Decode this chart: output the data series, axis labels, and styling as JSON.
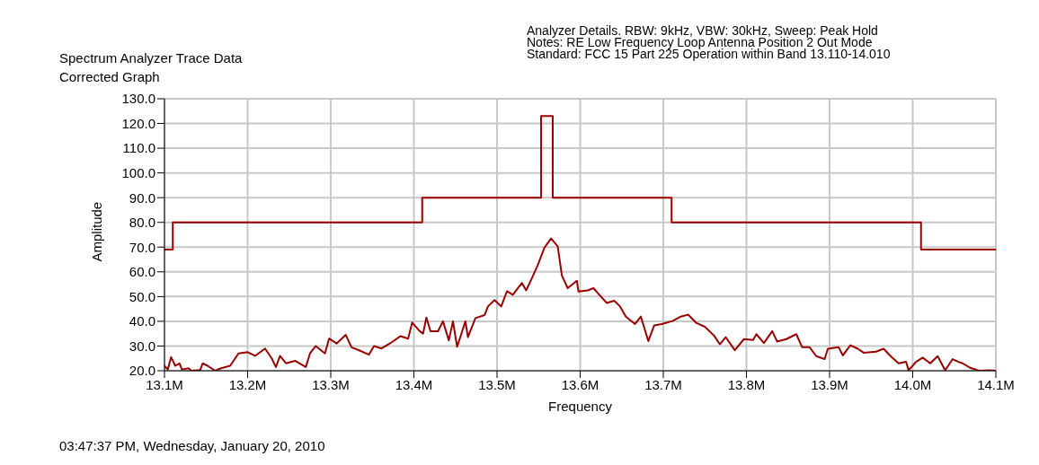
{
  "chart_data": {
    "type": "line",
    "title": "Spectrum Analyzer Trace Data",
    "subtitle": "Corrected Graph",
    "xlabel": "Frequency",
    "ylabel": "Amplitude",
    "annotations": [
      "Analyzer Details.  RBW: 9kHz, VBW: 30kHz, Sweep: Peak Hold",
      "Notes:  RE Low Frequency Loop Antenna Position 2  Out Mode",
      "Standard: FCC 15 Part 225 Operation within Band 13.110-14.010",
      "03:47:37 PM, Wednesday, January 20, 2010"
    ],
    "xlim": [
      13.1,
      14.1
    ],
    "xticks": [
      {
        "value": 13.1,
        "label": "13.1M"
      },
      {
        "value": 13.2,
        "label": "13.2M"
      },
      {
        "value": 13.3,
        "label": "13.3M"
      },
      {
        "value": 13.4,
        "label": "13.4M"
      },
      {
        "value": 13.5,
        "label": "13.5M"
      },
      {
        "value": 13.6,
        "label": "13.6M"
      },
      {
        "value": 13.7,
        "label": "13.7M"
      },
      {
        "value": 13.8,
        "label": "13.8M"
      },
      {
        "value": 13.9,
        "label": "13.9M"
      },
      {
        "value": 14.0,
        "label": "14.0M"
      },
      {
        "value": 14.1,
        "label": "14.1M"
      }
    ],
    "ylim": [
      20,
      130
    ],
    "yticks": [
      {
        "value": 20,
        "label": "20.0"
      },
      {
        "value": 30,
        "label": "30.0"
      },
      {
        "value": 40,
        "label": "40.0"
      },
      {
        "value": 50,
        "label": "50.0"
      },
      {
        "value": 60,
        "label": "60.0"
      },
      {
        "value": 70,
        "label": "70.0"
      },
      {
        "value": 80,
        "label": "80.0"
      },
      {
        "value": 90,
        "label": "90.0"
      },
      {
        "value": 100,
        "label": "100.0"
      },
      {
        "value": 110,
        "label": "110.0"
      },
      {
        "value": 120,
        "label": "120.0"
      },
      {
        "value": 130,
        "label": "130.0"
      }
    ],
    "grid": true,
    "marker": "none",
    "line_style": "solid",
    "series": [
      {
        "type": "step",
        "color": "#990000",
        "x": [
          13.1,
          13.11,
          13.41,
          13.553,
          13.567,
          13.71,
          14.01,
          14.1
        ],
        "values": [
          69,
          80,
          90,
          123,
          90,
          80,
          69,
          69
        ]
      },
      {
        "type": "line",
        "color": "#990000",
        "x": [
          13.1,
          13.104,
          13.108,
          13.113,
          13.118,
          13.121,
          13.129,
          13.132,
          13.143,
          13.146,
          13.152,
          13.161,
          13.168,
          13.179,
          13.189,
          13.2,
          13.209,
          13.221,
          13.229,
          13.234,
          13.239,
          13.246,
          13.257,
          13.27,
          13.275,
          13.282,
          13.293,
          13.298,
          13.307,
          13.318,
          13.325,
          13.336,
          13.346,
          13.352,
          13.361,
          13.371,
          13.384,
          13.393,
          13.398,
          13.407,
          13.411,
          13.415,
          13.42,
          13.429,
          13.435,
          13.442,
          13.447,
          13.452,
          13.462,
          13.465,
          13.474,
          13.485,
          13.489,
          13.497,
          13.505,
          13.512,
          13.519,
          13.53,
          13.535,
          13.541,
          13.549,
          13.557,
          13.565,
          13.573,
          13.578,
          13.585,
          13.596,
          13.598,
          13.609,
          13.616,
          13.623,
          13.632,
          13.641,
          13.648,
          13.655,
          13.666,
          13.673,
          13.682,
          13.689,
          13.698,
          13.711,
          13.721,
          13.73,
          13.739,
          13.75,
          13.761,
          13.768,
          13.775,
          13.786,
          13.797,
          13.808,
          13.812,
          13.821,
          13.831,
          13.837,
          13.848,
          13.86,
          13.867,
          13.876,
          13.884,
          13.894,
          13.898,
          13.911,
          13.916,
          13.925,
          13.934,
          13.941,
          13.956,
          13.965,
          13.974,
          13.983,
          13.992,
          13.995,
          14.004,
          14.012,
          14.021,
          14.03,
          14.039,
          14.048,
          14.055,
          14.06,
          14.069,
          14.08,
          14.091,
          14.1
        ],
        "values": [
          22,
          20.5,
          25.5,
          22,
          23,
          20.5,
          21,
          20,
          20.3,
          23,
          22,
          20,
          21,
          22,
          27,
          27.5,
          26,
          29,
          25,
          21.5,
          26,
          23,
          24,
          21.5,
          27,
          30,
          27,
          33,
          31,
          34.5,
          29.5,
          28,
          26.5,
          30,
          29,
          31,
          34,
          33,
          39.5,
          36,
          35,
          41.5,
          36,
          36,
          40,
          32.3,
          40,
          29.7,
          40,
          33.6,
          41.3,
          42.5,
          46,
          48.6,
          46,
          52.2,
          50.7,
          55.5,
          52.5,
          56.7,
          62.7,
          69.8,
          73.5,
          70.3,
          58.5,
          53.4,
          56.4,
          52,
          52.5,
          53.4,
          50.7,
          47.4,
          48.3,
          46,
          41.9,
          38.9,
          41.9,
          32,
          38.3,
          38.9,
          40.1,
          41.9,
          42.7,
          39.5,
          37.8,
          34.2,
          30.7,
          33.6,
          28.3,
          32.8,
          32.4,
          34.8,
          31.2,
          36,
          31.8,
          32.8,
          34.8,
          29.5,
          29.5,
          25.9,
          24.7,
          28.9,
          29.5,
          26.2,
          30.3,
          28.9,
          27.3,
          27.7,
          28.9,
          25.7,
          23,
          23.6,
          20.2,
          23.6,
          25.3,
          23,
          25.9,
          20.2,
          24.7,
          23.6,
          23,
          21.2,
          20,
          20.2,
          20
        ]
      }
    ]
  }
}
